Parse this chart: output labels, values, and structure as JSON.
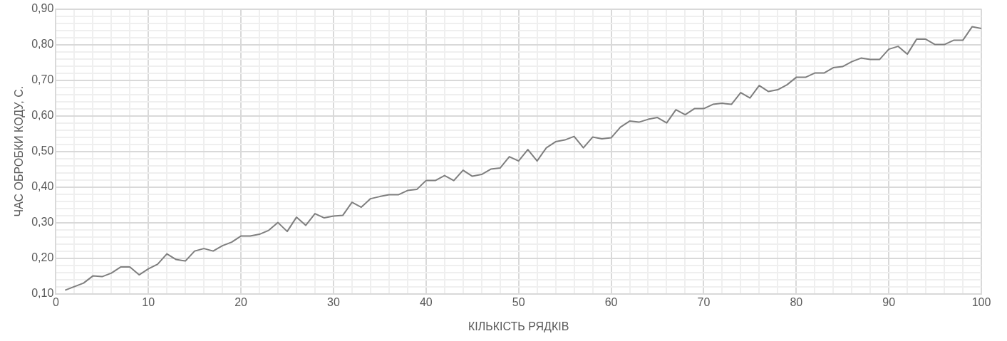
{
  "chart_data": {
    "type": "line",
    "xlabel": "КІЛЬКІСТЬ РЯДКІВ",
    "ylabel": "ЧАС ОБРОБКИ КОДУ, С.",
    "x": [
      1,
      2,
      3,
      4,
      5,
      6,
      7,
      8,
      9,
      10,
      11,
      12,
      13,
      14,
      15,
      16,
      17,
      18,
      19,
      20,
      21,
      22,
      23,
      24,
      25,
      26,
      27,
      28,
      29,
      30,
      31,
      32,
      33,
      34,
      35,
      36,
      37,
      38,
      39,
      40,
      41,
      42,
      43,
      44,
      45,
      46,
      47,
      48,
      49,
      50,
      51,
      52,
      53,
      54,
      55,
      56,
      57,
      58,
      59,
      60,
      61,
      62,
      63,
      64,
      65,
      66,
      67,
      68,
      69,
      70,
      71,
      72,
      73,
      74,
      75,
      76,
      77,
      78,
      79,
      80,
      81,
      82,
      83,
      84,
      85,
      86,
      87,
      88,
      89,
      90,
      91,
      92,
      93,
      94,
      95,
      96,
      97,
      98,
      99,
      100
    ],
    "series": [
      {
        "color": "#7f7f7f",
        "values": [
          0.11,
          0.12,
          0.13,
          0.15,
          0.148,
          0.158,
          0.175,
          0.175,
          0.153,
          0.17,
          0.183,
          0.212,
          0.196,
          0.192,
          0.22,
          0.227,
          0.22,
          0.235,
          0.245,
          0.262,
          0.262,
          0.267,
          0.278,
          0.3,
          0.275,
          0.315,
          0.292,
          0.325,
          0.313,
          0.318,
          0.32,
          0.357,
          0.343,
          0.367,
          0.373,
          0.378,
          0.378,
          0.39,
          0.393,
          0.418,
          0.418,
          0.432,
          0.418,
          0.447,
          0.43,
          0.435,
          0.45,
          0.453,
          0.485,
          0.473,
          0.505,
          0.473,
          0.51,
          0.527,
          0.532,
          0.542,
          0.51,
          0.54,
          0.535,
          0.538,
          0.568,
          0.585,
          0.582,
          0.59,
          0.595,
          0.58,
          0.617,
          0.603,
          0.62,
          0.62,
          0.632,
          0.635,
          0.632,
          0.665,
          0.65,
          0.685,
          0.668,
          0.673,
          0.687,
          0.708,
          0.708,
          0.72,
          0.72,
          0.735,
          0.738,
          0.752,
          0.762,
          0.758,
          0.758,
          0.787,
          0.795,
          0.773,
          0.815,
          0.815,
          0.8,
          0.8,
          0.812,
          0.812,
          0.85,
          0.845
        ]
      }
    ],
    "xlim": [
      0,
      100
    ],
    "xticks": [
      0,
      {
        "value": 2,
        "label": null
      },
      {
        "value": 4,
        "label": null
      },
      {
        "value": 6,
        "label": null
      },
      {
        "value": 8,
        "label": null
      },
      10,
      {
        "value": 12,
        "label": null
      },
      {
        "value": 14,
        "label": null
      },
      {
        "value": 16,
        "label": null
      },
      {
        "value": 18,
        "label": null
      },
      20,
      {
        "value": 22,
        "label": null
      },
      {
        "value": 24,
        "label": null
      },
      {
        "value": 26,
        "label": null
      },
      {
        "value": 28,
        "label": null
      },
      30,
      {
        "value": 32,
        "label": null
      },
      {
        "value": 34,
        "label": null
      },
      {
        "value": 36,
        "label": null
      },
      {
        "value": 38,
        "label": null
      },
      40,
      {
        "value": 42,
        "label": null
      },
      {
        "value": 44,
        "label": null
      },
      {
        "value": 46,
        "label": null
      },
      {
        "value": 48,
        "label": null
      },
      50,
      {
        "value": 52,
        "label": null
      },
      {
        "value": 54,
        "label": null
      },
      {
        "value": 56,
        "label": null
      },
      {
        "value": 58,
        "label": null
      },
      60,
      {
        "value": 62,
        "label": null
      },
      {
        "value": 64,
        "label": null
      },
      {
        "value": 66,
        "label": null
      },
      {
        "value": 68,
        "label": null
      },
      70,
      {
        "value": 72,
        "label": null
      },
      {
        "value": 74,
        "label": null
      },
      {
        "value": 76,
        "label": null
      },
      {
        "value": 78,
        "label": null
      },
      80,
      {
        "value": 82,
        "label": null
      },
      {
        "value": 84,
        "label": null
      },
      {
        "value": 86,
        "label": null
      },
      {
        "value": 88,
        "label": null
      },
      90,
      {
        "value": 92,
        "label": null
      },
      {
        "value": 94,
        "label": null
      },
      {
        "value": 96,
        "label": null
      },
      {
        "value": 98,
        "label": null
      },
      100
    ],
    "ylim": [
      0.1,
      0.9
    ],
    "yticks": [
      {
        "value": 0.1,
        "label": "0,10"
      },
      {
        "value": 0.12,
        "label": null
      },
      {
        "value": 0.14,
        "label": null
      },
      {
        "value": 0.16,
        "label": null
      },
      {
        "value": 0.18,
        "label": null
      },
      {
        "value": 0.2,
        "label": "0,20"
      },
      {
        "value": 0.22,
        "label": null
      },
      {
        "value": 0.24,
        "label": null
      },
      {
        "value": 0.26,
        "label": null
      },
      {
        "value": 0.28,
        "label": null
      },
      {
        "value": 0.3,
        "label": "0,30"
      },
      {
        "value": 0.32,
        "label": null
      },
      {
        "value": 0.34,
        "label": null
      },
      {
        "value": 0.36,
        "label": null
      },
      {
        "value": 0.38,
        "label": null
      },
      {
        "value": 0.4,
        "label": "0,40"
      },
      {
        "value": 0.42,
        "label": null
      },
      {
        "value": 0.44,
        "label": null
      },
      {
        "value": 0.46,
        "label": null
      },
      {
        "value": 0.48,
        "label": null
      },
      {
        "value": 0.5,
        "label": "0,50"
      },
      {
        "value": 0.52,
        "label": null
      },
      {
        "value": 0.54,
        "label": null
      },
      {
        "value": 0.56,
        "label": null
      },
      {
        "value": 0.58,
        "label": null
      },
      {
        "value": 0.6,
        "label": "0,60"
      },
      {
        "value": 0.62,
        "label": null
      },
      {
        "value": 0.64,
        "label": null
      },
      {
        "value": 0.66,
        "label": null
      },
      {
        "value": 0.68,
        "label": null
      },
      {
        "value": 0.7,
        "label": "0,70"
      },
      {
        "value": 0.72,
        "label": null
      },
      {
        "value": 0.74,
        "label": null
      },
      {
        "value": 0.76,
        "label": null
      },
      {
        "value": 0.78,
        "label": null
      },
      {
        "value": 0.8,
        "label": "0,80"
      },
      {
        "value": 0.82,
        "label": null
      },
      {
        "value": 0.84,
        "label": null
      },
      {
        "value": 0.86,
        "label": null
      },
      {
        "value": 0.88,
        "label": null
      },
      {
        "value": 0.9,
        "label": "0,90"
      }
    ],
    "grid": true,
    "legend": false,
    "marker": "none",
    "line_style": "solid"
  }
}
